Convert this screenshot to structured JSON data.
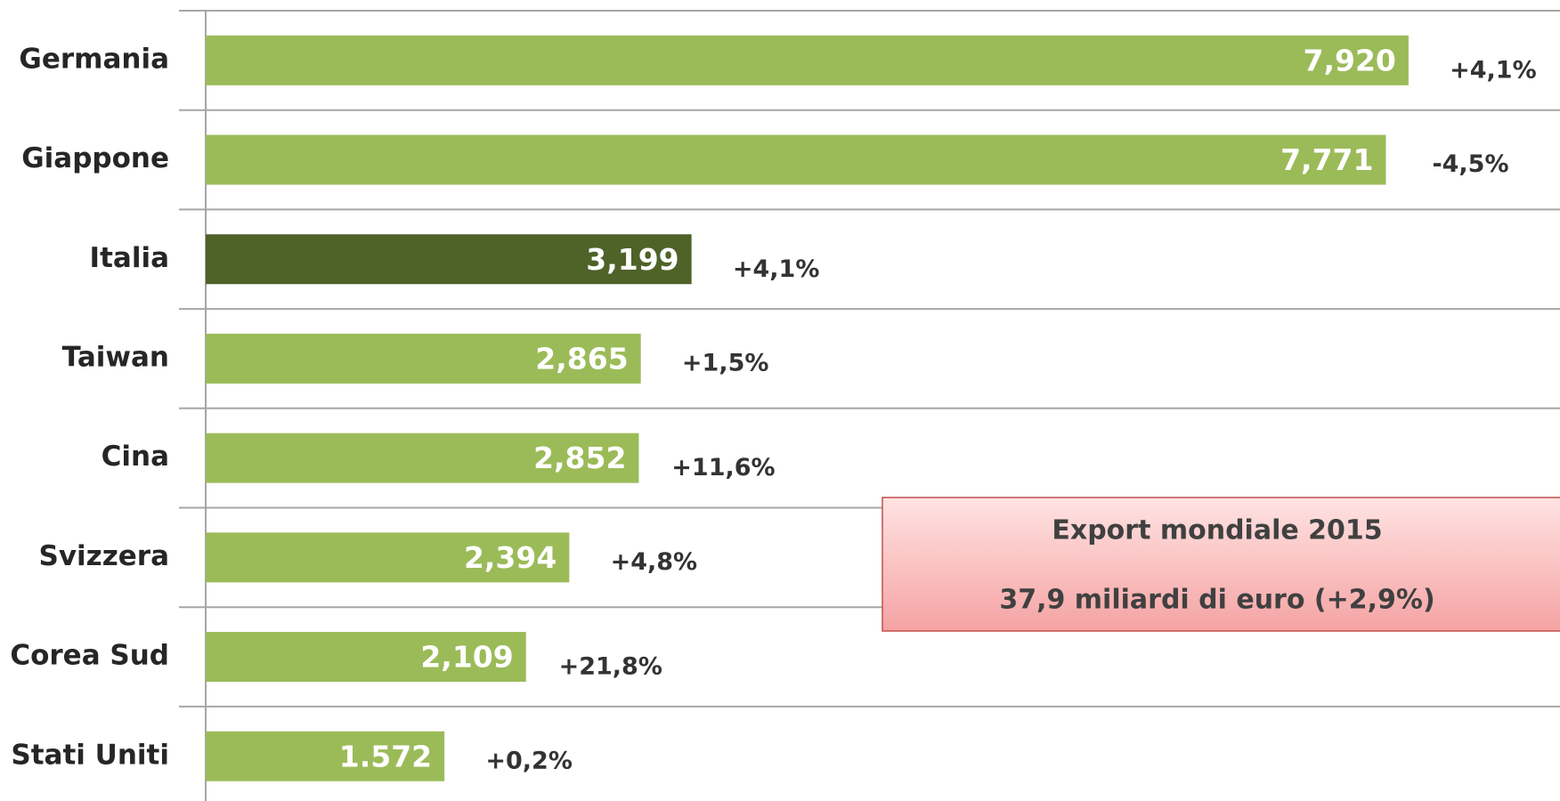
{
  "chart_data": {
    "type": "hbar",
    "categories": [
      "Germania",
      "Giappone",
      "Italia",
      "Taiwan",
      "Cina",
      "Svizzera",
      "Corea Sud",
      "Stati Uniti"
    ],
    "values": [
      7920,
      7771,
      3199,
      2865,
      2852,
      2394,
      2109,
      1572
    ],
    "value_labels": [
      "7,920",
      "7,771",
      "3,199",
      "2,865",
      "2,852",
      "2,394",
      "2,109",
      "1.572"
    ],
    "colors": [
      "#9bbb59",
      "#9bbb59",
      "#4f6228",
      "#9bbb59",
      "#9bbb59",
      "#9bbb59",
      "#9bbb59",
      "#9bbb59"
    ],
    "annotations": [
      "+4,1%",
      "-4,5%",
      "+4,1%",
      "+1,5%",
      "+11,6%",
      "+4,8%",
      "+21,8%",
      "+0,2%"
    ],
    "xlim": [
      0,
      8800
    ],
    "box": {
      "title": "Export mondiale 2015",
      "text": "37,9 miliardi di euro (+2,9%)"
    }
  }
}
